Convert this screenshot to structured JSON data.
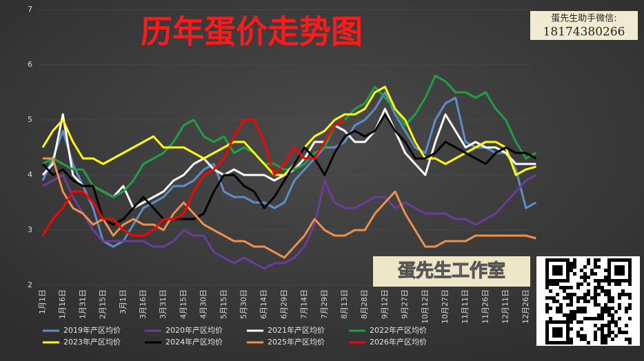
{
  "chart_data": {
    "type": "line",
    "title": "历年蛋价走势图",
    "categories": [
      "1月1日",
      null,
      "1月16日",
      null,
      "1月31日",
      null,
      "2月15日",
      null,
      "3月1日",
      null,
      "3月16日",
      null,
      "3月31日",
      null,
      "4月15日",
      null,
      "4月30日",
      null,
      "5月15日",
      null,
      "5月30日",
      null,
      "6月14日",
      null,
      "6月29日",
      null,
      "7月14日",
      null,
      "7月29日",
      null,
      "8月13日",
      null,
      "8月28日",
      null,
      "9月12日",
      null,
      "9月27日",
      null,
      "10月12日",
      null,
      "10月27日",
      null,
      "11月11日",
      null,
      "11月26日",
      null,
      "12月11日",
      null,
      "12月26日",
      null
    ],
    "ylim": [
      2,
      7
    ],
    "yticks": [
      2,
      3,
      4,
      5,
      6,
      7
    ],
    "series": [
      {
        "name": "2019年产区均价",
        "color": "#5b8fc9",
        "values": [
          3.9,
          4.3,
          4.8,
          4.2,
          3.8,
          3.4,
          2.8,
          2.7,
          2.8,
          3.1,
          3.4,
          3.5,
          3.6,
          3.8,
          3.8,
          3.9,
          4.1,
          4.2,
          3.7,
          3.6,
          3.6,
          3.5,
          3.5,
          3.4,
          3.5,
          3.9,
          4.1,
          4.3,
          4.5,
          4.5,
          4.6,
          4.9,
          5.0,
          5.2,
          5.5,
          5.1,
          4.8,
          4.5,
          4.4,
          5.0,
          5.3,
          5.4,
          4.6,
          4.5,
          4.5,
          4.4,
          4.4,
          4.1,
          3.4,
          3.5
        ]
      },
      {
        "name": "2020年产区均价",
        "color": "#6a3d9a",
        "values": [
          3.8,
          3.9,
          4.0,
          3.6,
          3.3,
          3.0,
          2.8,
          2.8,
          2.8,
          2.8,
          2.8,
          2.7,
          2.7,
          2.8,
          3.0,
          2.9,
          2.9,
          2.6,
          2.5,
          2.4,
          2.5,
          2.4,
          2.3,
          2.4,
          2.4,
          2.5,
          2.7,
          3.1,
          3.9,
          3.5,
          3.4,
          3.4,
          3.5,
          3.6,
          3.6,
          3.4,
          3.5,
          3.4,
          3.3,
          3.3,
          3.3,
          3.2,
          3.2,
          3.1,
          3.2,
          3.3,
          3.5,
          3.7,
          3.9,
          4.0
        ]
      },
      {
        "name": "2021年产区均价",
        "color": "#ffffff",
        "values": [
          4.0,
          4.2,
          5.1,
          4.0,
          3.8,
          3.8,
          3.7,
          3.6,
          3.8,
          3.4,
          3.5,
          3.6,
          3.7,
          3.9,
          4.0,
          4.2,
          4.3,
          4.1,
          4.0,
          4.1,
          4.0,
          4.0,
          4.0,
          3.9,
          4.0,
          4.1,
          4.3,
          4.6,
          4.6,
          4.9,
          4.8,
          4.6,
          4.6,
          4.8,
          5.2,
          4.8,
          4.4,
          4.2,
          4.0,
          4.6,
          5.1,
          4.8,
          4.5,
          4.6,
          4.5,
          4.5,
          4.4,
          4.2,
          4.2,
          4.2
        ]
      },
      {
        "name": "2022年产区均价",
        "color": "#1fa046",
        "values": [
          4.2,
          4.3,
          4.2,
          4.1,
          4.1,
          3.8,
          3.7,
          3.6,
          3.7,
          3.9,
          4.2,
          4.3,
          4.4,
          4.6,
          4.9,
          5.0,
          4.7,
          4.6,
          4.7,
          4.4,
          4.5,
          4.4,
          4.2,
          4.2,
          4.1,
          4.1,
          4.2,
          4.4,
          4.5,
          4.9,
          5.0,
          5.2,
          5.3,
          5.6,
          5.4,
          5.2,
          4.9,
          5.1,
          5.4,
          5.8,
          5.7,
          5.5,
          5.5,
          5.4,
          5.5,
          5.2,
          5.0,
          4.6,
          4.3,
          4.4
        ]
      },
      {
        "name": "2023年产区均价",
        "color": "#ffff00",
        "values": [
          4.5,
          4.8,
          5.0,
          4.6,
          4.3,
          4.3,
          4.2,
          4.3,
          4.4,
          4.5,
          4.6,
          4.7,
          4.5,
          4.5,
          4.5,
          4.4,
          4.3,
          4.4,
          4.5,
          4.6,
          4.6,
          4.4,
          4.2,
          4.0,
          4.0,
          4.2,
          4.5,
          4.7,
          4.8,
          5.0,
          5.1,
          5.1,
          5.2,
          5.5,
          5.6,
          5.2,
          5.0,
          4.6,
          4.3,
          4.3,
          4.2,
          4.3,
          4.4,
          4.5,
          4.6,
          4.6,
          4.5,
          4.0,
          4.1,
          4.15
        ]
      },
      {
        "name": "2024年产区均价",
        "color": "#000000",
        "values": [
          4.2,
          4.0,
          4.1,
          3.9,
          3.8,
          3.8,
          3.2,
          3.1,
          3.2,
          3.4,
          3.6,
          3.4,
          3.2,
          3.2,
          3.2,
          3.2,
          3.3,
          3.7,
          4.0,
          4.0,
          3.8,
          3.7,
          3.4,
          3.6,
          3.9,
          4.2,
          4.5,
          4.3,
          4.0,
          4.4,
          4.7,
          4.8,
          4.7,
          4.8,
          5.1,
          4.8,
          4.6,
          4.3,
          4.3,
          4.4,
          4.6,
          4.5,
          4.4,
          4.3,
          4.2,
          4.4,
          4.5,
          4.4,
          4.4,
          4.3
        ]
      },
      {
        "name": "2025年产区均价",
        "color": "#f0914a",
        "values": [
          4.3,
          4.3,
          3.7,
          3.4,
          3.3,
          3.1,
          3.2,
          2.9,
          3.1,
          3.2,
          3.1,
          3.1,
          3.0,
          3.3,
          3.5,
          3.3,
          3.1,
          3.0,
          2.9,
          2.8,
          2.8,
          2.7,
          2.7,
          2.6,
          2.5,
          2.7,
          2.9,
          3.2,
          3.0,
          2.9,
          2.9,
          3.0,
          3.0,
          3.3,
          3.5,
          3.7,
          3.3,
          3.0,
          2.7,
          2.7,
          2.8,
          2.8,
          2.8,
          2.9,
          2.9,
          2.9,
          2.9,
          2.9,
          2.9,
          2.85
        ]
      },
      {
        "name": "2026年产区均价",
        "color": "#ff0000",
        "values": [
          2.9,
          3.2,
          3.4,
          3.7,
          3.7,
          3.5,
          3.2,
          3.2,
          3.0,
          2.9,
          2.9,
          3.0,
          3.2,
          3.2,
          3.3,
          3.7,
          4.0,
          4.1,
          4.3,
          4.7,
          5.0,
          5.0,
          4.6,
          4.0,
          4.2,
          4.5,
          4.3,
          4.3,
          4.6,
          4.9,
          5.0,
          null,
          null,
          null,
          null,
          null,
          null,
          null,
          null,
          null,
          null,
          null,
          null,
          null,
          null,
          null,
          null,
          null,
          null,
          null
        ]
      }
    ]
  },
  "badge": {
    "label": "蛋先生助手微信:",
    "number": "18174380266"
  },
  "studio": "蛋先生工作室"
}
